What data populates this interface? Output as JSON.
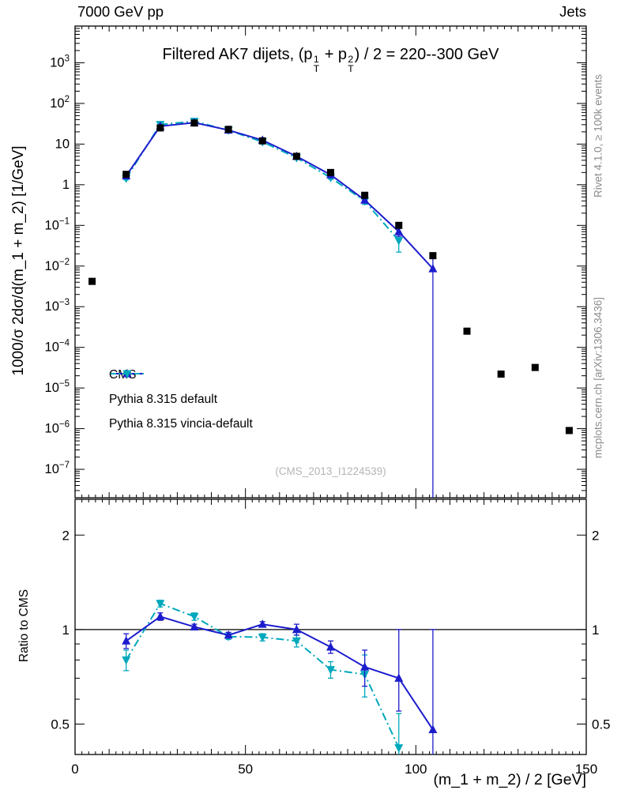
{
  "header": {
    "left": "7000 GeV pp",
    "right": "Jets"
  },
  "sidebar_right": {
    "top": "Rivet 4.1.0, ≥ 100k events",
    "bottom": "mcplots.cern.ch [arXiv:1306.3436]"
  },
  "watermark": "(CMS_2013_I1224539)",
  "chart_data": {
    "type": "line",
    "title": "Filtered AK7 dijets, (p_T^1 + p_T^2) / 2 = 220--300 GeV",
    "xlabel": "(m_1 + m_2) / 2 [GeV]",
    "ylabel": "1000/σ  2dσ/d(m_1 + m_2) [1/GeV]",
    "ratio_ylabel": "Ratio to CMS",
    "xlim": [
      0,
      150
    ],
    "ylim": [
      2e-08,
      8000
    ],
    "ratio_ylim": [
      0.4,
      2.6
    ],
    "x_major_ticks": [
      0,
      50,
      100,
      150
    ],
    "ratio_major_ticks": [
      0.5,
      1,
      2
    ],
    "ratio_minor_ticks": [
      0.4,
      0.6,
      0.7,
      0.8,
      0.9
    ],
    "ratio_ref": 1,
    "grid": false,
    "legend_position": "left-middle",
    "series": [
      {
        "name": "CMS",
        "marker": "square",
        "line": "none",
        "color": "#000000",
        "x": [
          5,
          15,
          25,
          35,
          45,
          55,
          65,
          75,
          85,
          95,
          105,
          115,
          125,
          135,
          145
        ],
        "y": [
          0.0042,
          1.8,
          25,
          33,
          23,
          12,
          5.0,
          2.0,
          0.55,
          0.1,
          0.018,
          0.00025,
          2.2e-05,
          3.2e-05,
          9e-07
        ],
        "err": null
      },
      {
        "name": "Pythia 8.315 default",
        "marker": "triangle-up",
        "line": "solid",
        "color": "#1c1ccd",
        "x": [
          15,
          25,
          35,
          45,
          55,
          65,
          75,
          85,
          95,
          105
        ],
        "y": [
          1.66,
          27.5,
          33.7,
          22.1,
          12.5,
          5.0,
          1.76,
          0.42,
          0.07,
          0.0086
        ],
        "err": [
          [
            1.5,
            1.83
          ],
          [
            26.1,
            29.0
          ],
          [
            32.0,
            35.5
          ],
          [
            21.0,
            23.3
          ],
          [
            11.9,
            13.2
          ],
          [
            4.75,
            5.3
          ],
          [
            1.62,
            1.91
          ],
          [
            0.36,
            0.48
          ],
          [
            0.054,
            0.092
          ],
          [
            1e-08,
            0.02
          ]
        ]
      },
      {
        "name": "Pythia 8.315 vincia-default",
        "marker": "triangle-down",
        "line": "dashdot",
        "color": "#00a8bc",
        "x": [
          15,
          25,
          35,
          45,
          55,
          65,
          75,
          85,
          95
        ],
        "y": [
          1.44,
          30.3,
          36.3,
          21.9,
          11.3,
          4.6,
          1.49,
          0.4,
          0.042
        ],
        "err": [
          [
            1.31,
            1.58
          ],
          [
            28.8,
            31.9
          ],
          [
            34.5,
            38.2
          ],
          [
            20.8,
            23.1
          ],
          [
            10.7,
            11.9
          ],
          [
            4.35,
            4.87
          ],
          [
            1.37,
            1.62
          ],
          [
            0.33,
            0.47
          ],
          [
            0.022,
            0.062
          ]
        ]
      }
    ],
    "ratio_series": [
      {
        "name": "Pythia 8.315 default",
        "marker": "triangle-up",
        "line": "solid",
        "color": "#1c1ccd",
        "x": [
          15,
          25,
          35,
          45,
          55,
          65,
          75,
          85,
          95,
          105
        ],
        "y": [
          0.92,
          1.1,
          1.02,
          0.96,
          1.04,
          1.0,
          0.88,
          0.76,
          0.7,
          0.48
        ],
        "err": [
          [
            0.87,
            0.97
          ],
          [
            1.07,
            1.13
          ],
          [
            1.0,
            1.04
          ],
          [
            0.94,
            0.98
          ],
          [
            1.02,
            1.06
          ],
          [
            0.96,
            1.04
          ],
          [
            0.84,
            0.92
          ],
          [
            0.66,
            0.86
          ],
          [
            0.55,
            1.0
          ],
          [
            0.36,
            1.0
          ]
        ]
      },
      {
        "name": "Pythia 8.315 vincia-default",
        "marker": "triangle-down",
        "line": "dashdot",
        "color": "#00a8bc",
        "x": [
          15,
          25,
          35,
          45,
          55,
          65,
          75,
          85,
          95
        ],
        "y": [
          0.8,
          1.21,
          1.1,
          0.95,
          0.945,
          0.92,
          0.745,
          0.72,
          0.42
        ],
        "err": [
          [
            0.74,
            0.86
          ],
          [
            1.18,
            1.24
          ],
          [
            1.07,
            1.13
          ],
          [
            0.93,
            0.97
          ],
          [
            0.92,
            0.97
          ],
          [
            0.88,
            0.96
          ],
          [
            0.7,
            0.79
          ],
          [
            0.61,
            0.83
          ],
          [
            0.385,
            0.54
          ]
        ]
      }
    ]
  }
}
